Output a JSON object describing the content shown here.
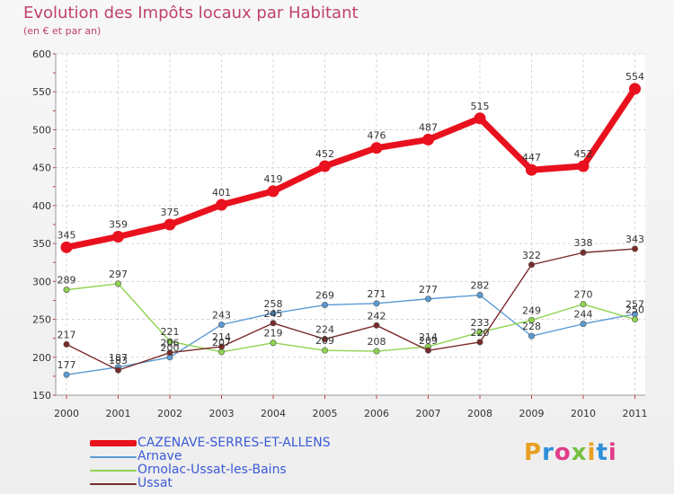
{
  "title": "Evolution des Impôts locaux par Habitant",
  "subtitle": "(en € et par an)",
  "logo": {
    "text": "Proxiti",
    "colors": [
      "#e8a020",
      "#2d8fd9",
      "#e03c8a",
      "#76c043"
    ]
  },
  "chart_data": {
    "type": "line",
    "title": "Evolution des Impôts locaux par Habitant",
    "ylabel": "(en € et par an)",
    "xlabel": "",
    "ylim": [
      150,
      600
    ],
    "y_ticks": [
      150,
      200,
      250,
      300,
      350,
      400,
      450,
      500,
      550,
      600
    ],
    "x": [
      "2000",
      "2001",
      "2002",
      "2003",
      "2004",
      "2005",
      "2006",
      "2007",
      "2008",
      "2009",
      "2010",
      "2011"
    ],
    "grid": true,
    "legend_position": "bottom-left",
    "series": [
      {
        "name": "CAZENAVE-SERRES-ET-ALLENS",
        "color": "#e8111d",
        "emphasis": true,
        "values": [
          345,
          359,
          375,
          401,
          419,
          452,
          476,
          487,
          515,
          447,
          452,
          554
        ],
        "labels": [
          "345",
          "359",
          "375",
          "401",
          "419",
          "452",
          "476",
          "487",
          "515",
          "447",
          "452",
          "554"
        ]
      },
      {
        "name": "Arnave",
        "color": "#5b9bd5",
        "values": [
          177,
          187,
          200,
          243,
          258,
          269,
          271,
          277,
          282,
          228,
          244,
          257
        ],
        "labels": [
          "177",
          "187",
          "200",
          "243",
          "258",
          "269",
          "271",
          "277",
          "282",
          "228",
          "244",
          "257"
        ]
      },
      {
        "name": "Ornolac-Ussat-les-Bains",
        "color": "#8fd44f",
        "values": [
          289,
          297,
          221,
          207,
          219,
          209,
          208,
          214,
          233,
          249,
          270,
          250
        ],
        "labels": [
          "289",
          "297",
          "221",
          "207",
          "219",
          "209",
          "208",
          "214",
          "233",
          "249",
          "270",
          "250"
        ]
      },
      {
        "name": "Ussat",
        "color": "#7a2a2a",
        "values": [
          217,
          183,
          206,
          214,
          245,
          224,
          242,
          209,
          220,
          322,
          338,
          343
        ],
        "labels": [
          "217",
          "183",
          "206",
          "214",
          "245",
          "224",
          "242",
          "209",
          "220",
          "322",
          "338",
          "343"
        ]
      }
    ]
  }
}
